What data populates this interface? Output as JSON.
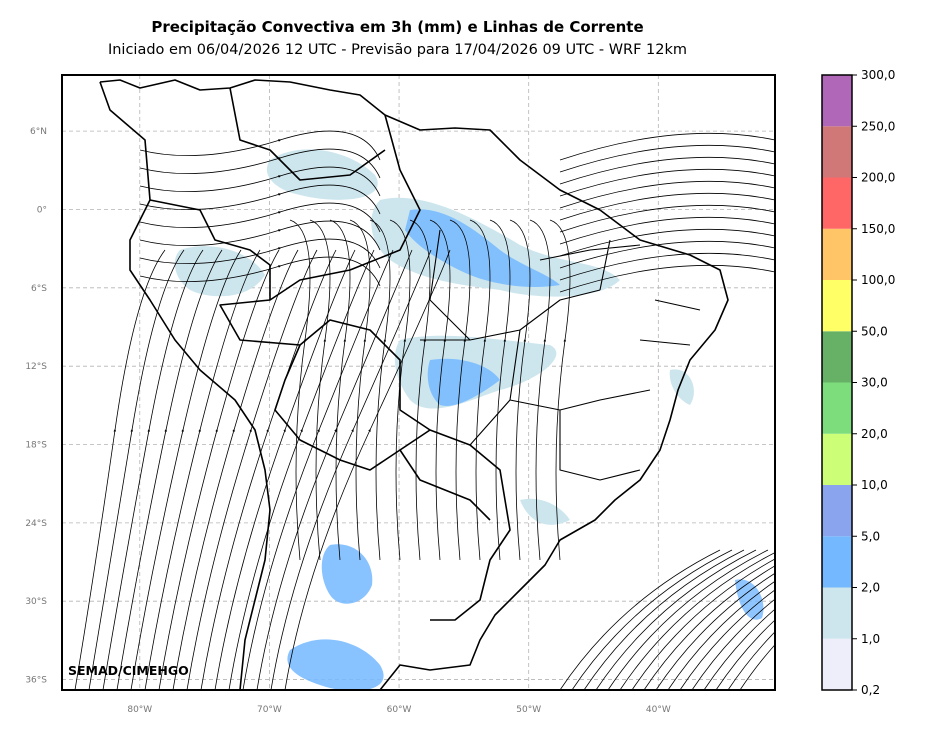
{
  "title": "Precipitação Convectiva em 3h (mm) e Linhas de Corrente",
  "subtitle": "Iniciado em 06/04/2026 12 UTC - Previsão para 17/04/2026 09 UTC - WRF 12km",
  "credit": "SEMAD/CIMEHGO",
  "map": {
    "lon_range": [
      -86,
      -31
    ],
    "lat_range": [
      -36.8,
      10.3
    ],
    "gridlines": true,
    "lat_ticks": [
      {
        "value": 6,
        "label": "6°N"
      },
      {
        "value": 0,
        "label": "0°"
      },
      {
        "value": -6,
        "label": "6°S"
      },
      {
        "value": -12,
        "label": "12°S"
      },
      {
        "value": -18,
        "label": "18°S"
      },
      {
        "value": -24,
        "label": "24°S"
      },
      {
        "value": -30,
        "label": "30°S"
      },
      {
        "value": -36,
        "label": "36°S"
      }
    ],
    "lon_ticks": [
      {
        "value": -80,
        "label": "80°W"
      },
      {
        "value": -70,
        "label": "70°W"
      },
      {
        "value": -60,
        "label": "60°W"
      },
      {
        "value": -50,
        "label": "50°W"
      },
      {
        "value": -40,
        "label": "40°W"
      }
    ]
  },
  "colorbar": {
    "labels": [
      "0,2",
      "1,0",
      "2,0",
      "5,0",
      "10,0",
      "20,0",
      "30,0",
      "50,0",
      "100,0",
      "150,0",
      "200,0",
      "250,0",
      "300,0"
    ],
    "colors": [
      "#eeeefa",
      "#cde6ee",
      "#74b8ff",
      "#8aa4ee",
      "#ccff77",
      "#7ddd7d",
      "#67b167",
      "#ffff66",
      "#ffc566",
      "#ff6666",
      "#d07878",
      "#b067b8"
    ]
  },
  "colors": {
    "frame": "#000000",
    "grid": "#b4b4b4",
    "borders": "#000000",
    "precip_light": "#cde6ee",
    "precip_moderate": "#74b8ff",
    "precip_heavy": "#8aa4ee"
  }
}
